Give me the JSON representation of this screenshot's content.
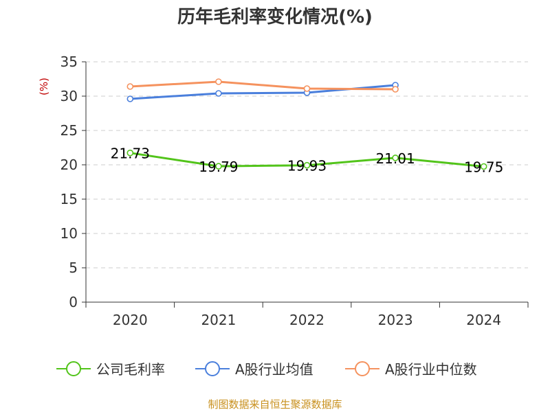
{
  "chart_data": {
    "type": "line",
    "title": "历年毛利率变化情况(%)",
    "ylabel": "(%)",
    "xlabel": "",
    "categories": [
      "2020",
      "2021",
      "2022",
      "2023",
      "2024"
    ],
    "ylim": [
      0,
      35
    ],
    "yticks": [
      0,
      5,
      10,
      15,
      20,
      25,
      30,
      35
    ],
    "grid": true,
    "legend_position": "bottom",
    "series": [
      {
        "name": "公司毛利率",
        "color": "#52c41a",
        "values": [
          21.73,
          19.79,
          19.93,
          21.01,
          19.75
        ],
        "labels": [
          "21.73",
          "19.79",
          "19.93",
          "21.01",
          "19.75"
        ]
      },
      {
        "name": "A股行业均值",
        "color": "#4a7fdc",
        "values": [
          29.6,
          30.4,
          30.5,
          31.6,
          null
        ]
      },
      {
        "name": "A股行业中位数",
        "color": "#f5925e",
        "values": [
          31.4,
          32.1,
          31.1,
          31.0,
          null
        ]
      }
    ]
  },
  "source": "制图数据来自恒生聚源数据库"
}
